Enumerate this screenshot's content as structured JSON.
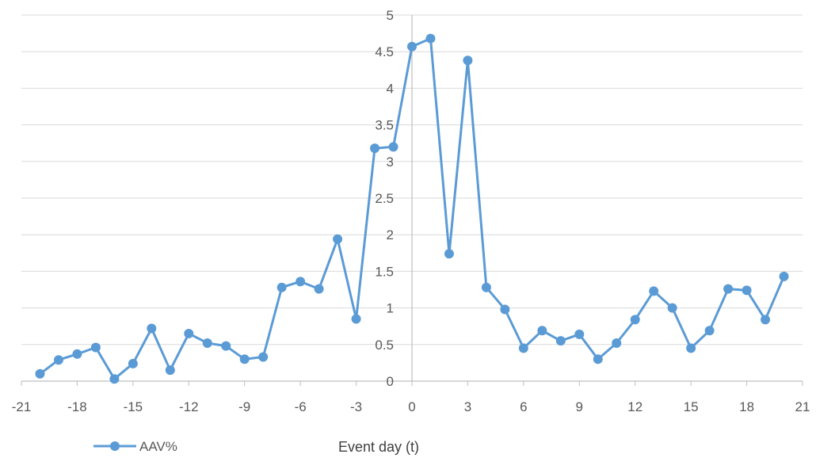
{
  "chart_data": {
    "type": "line",
    "xlabel": "Event day (t)",
    "ylabel": "",
    "xlim": [
      -21,
      21
    ],
    "ylim": [
      0,
      5
    ],
    "x_ticks": [
      -21,
      -18,
      -15,
      -12,
      -9,
      -6,
      -3,
      0,
      3,
      6,
      9,
      12,
      15,
      18,
      21
    ],
    "y_ticks": [
      0,
      0.5,
      1,
      1.5,
      2,
      2.5,
      3,
      3.5,
      4,
      4.5,
      5
    ],
    "grid": "horizontal",
    "legend": "bottom-left",
    "series": [
      {
        "name": "AAV%",
        "color": "#5b9bd5",
        "x": [
          -20,
          -19,
          -18,
          -17,
          -16,
          -15,
          -14,
          -13,
          -12,
          -11,
          -10,
          -9,
          -8,
          -7,
          -6,
          -5,
          -4,
          -3,
          -2,
          -1,
          0,
          1,
          2,
          3,
          4,
          5,
          6,
          7,
          8,
          9,
          10,
          11,
          12,
          13,
          14,
          15,
          16,
          17,
          18,
          19,
          20
        ],
        "values": [
          0.1,
          0.29,
          0.37,
          0.46,
          0.03,
          0.24,
          0.72,
          0.15,
          0.65,
          0.52,
          0.48,
          0.3,
          0.33,
          1.28,
          1.36,
          1.26,
          1.94,
          0.85,
          3.18,
          3.2,
          4.57,
          4.68,
          1.74,
          4.38,
          1.28,
          0.98,
          0.45,
          0.69,
          0.55,
          0.64,
          0.3,
          0.52,
          0.84,
          1.23,
          1.0,
          0.45,
          0.69,
          1.26,
          1.24,
          0.84,
          1.43
        ]
      }
    ]
  }
}
